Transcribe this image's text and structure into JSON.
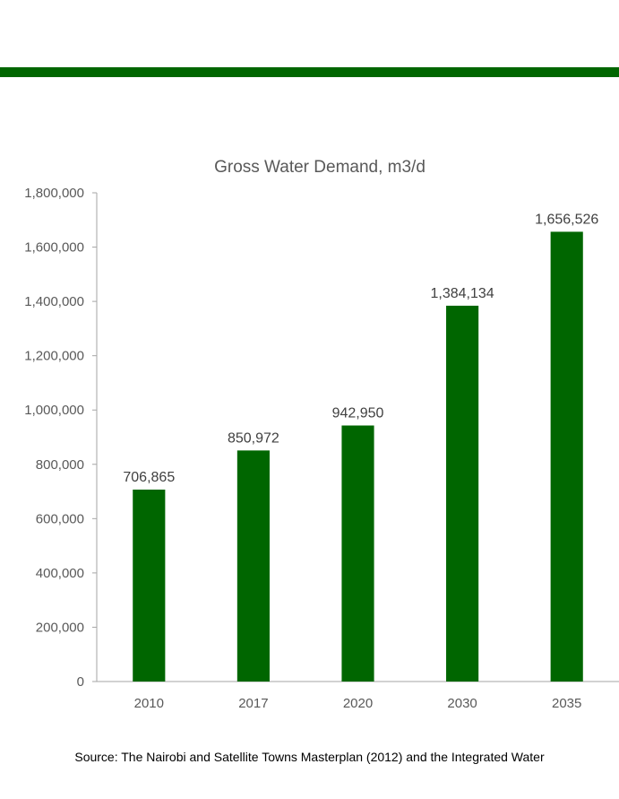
{
  "colors": {
    "band": "#006600",
    "bar": "#006600",
    "axis": "#a6a6a6",
    "text": "#595959"
  },
  "chart_data": {
    "type": "bar",
    "title": "Gross Water Demand, m3/d",
    "xlabel": "",
    "ylabel": "",
    "categories": [
      "2010",
      "2017",
      "2020",
      "2030",
      "2035"
    ],
    "values": [
      706865,
      850972,
      942950,
      1384134,
      1656526
    ],
    "data_labels": [
      "706,865",
      "850,972",
      "942,950",
      "1,384,134",
      "1,656,526"
    ],
    "ylim": [
      0,
      1800000
    ],
    "yticks": [
      0,
      200000,
      400000,
      600000,
      800000,
      1000000,
      1200000,
      1400000,
      1600000,
      1800000
    ],
    "ytick_labels": [
      "0",
      "200,000",
      "400,000",
      "600,000",
      "800,000",
      "1,000,000",
      "1,200,000",
      "1,400,000",
      "1,600,000",
      "1,800,000"
    ],
    "grid": false,
    "legend": "none"
  },
  "source_note": "Source: The Nairobi and Satellite Towns Masterplan (2012) and the Integrated Water"
}
